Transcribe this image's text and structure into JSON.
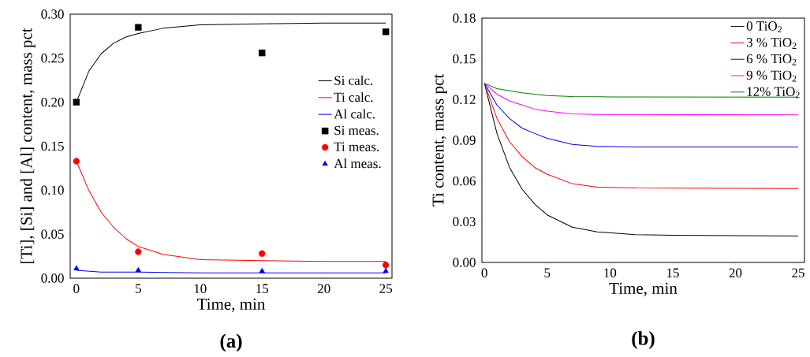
{
  "chart_data": [
    {
      "type": "line",
      "xlabel": "Time, min",
      "ylabel": "[Ti], [Si] and [Al] content, mass pct",
      "annotations": [
        "(a)"
      ],
      "legend": "right",
      "xlim": [
        -0.5,
        25.5
      ],
      "ylim": [
        0,
        0.3
      ],
      "xticks": [
        0,
        5,
        10,
        15,
        20,
        25
      ],
      "yticks": [
        {
          "value": 0,
          "label": "0.00"
        },
        {
          "value": 0.05,
          "label": "0.05"
        },
        {
          "value": 0.1,
          "label": "0.10"
        },
        {
          "value": 0.15,
          "label": "0.15"
        },
        {
          "value": 0.2,
          "label": "0.20"
        },
        {
          "value": 0.25,
          "label": "0.25"
        },
        {
          "value": 0.3,
          "label": "0.30"
        }
      ],
      "series": [
        {
          "name": "Si calc.",
          "type": "line",
          "color": "#000000",
          "x": [
            0,
            1,
            2,
            3,
            4,
            5,
            7,
            10,
            15,
            20,
            25
          ],
          "values": [
            0.2,
            0.235,
            0.255,
            0.267,
            0.274,
            0.278,
            0.284,
            0.288,
            0.289,
            0.29,
            0.29
          ]
        },
        {
          "name": "Ti calc.",
          "type": "line",
          "color": "#ff0000",
          "x": [
            0,
            1,
            2,
            3,
            4,
            5,
            7,
            10,
            15,
            20,
            25
          ],
          "values": [
            0.133,
            0.1,
            0.075,
            0.058,
            0.045,
            0.036,
            0.027,
            0.021,
            0.02,
            0.019,
            0.019
          ]
        },
        {
          "name": "Al calc.",
          "type": "line",
          "color": "#0000ff",
          "x": [
            0,
            2,
            5,
            10,
            25
          ],
          "values": [
            0.009,
            0.007,
            0.007,
            0.006,
            0.006
          ]
        },
        {
          "name": "Si meas.",
          "type": "scatter",
          "marker": "square",
          "color": "#000000",
          "x": [
            0,
            5,
            15,
            25
          ],
          "values": [
            0.2,
            0.285,
            0.256,
            0.28
          ]
        },
        {
          "name": "Ti meas.",
          "type": "scatter",
          "marker": "circle",
          "color": "#ff0000",
          "x": [
            0,
            5,
            15,
            25
          ],
          "values": [
            0.133,
            0.03,
            0.028,
            0.015
          ]
        },
        {
          "name": "Al meas.",
          "type": "scatter",
          "marker": "triangle",
          "color": "#0000ff",
          "x": [
            0,
            5,
            15,
            25
          ],
          "values": [
            0.011,
            0.009,
            0.008,
            0.008
          ]
        }
      ]
    },
    {
      "type": "line",
      "xlabel": "Time, min",
      "ylabel": "Ti content, mass pct",
      "annotations": [
        "(b)"
      ],
      "legend": "top right",
      "xlim": [
        -0.2,
        25.5
      ],
      "ylim": [
        0,
        0.18
      ],
      "xticks": [
        0,
        5,
        10,
        15,
        20,
        25
      ],
      "yticks": [
        {
          "value": 0,
          "label": "0.00"
        },
        {
          "value": 0.03,
          "label": "0.03"
        },
        {
          "value": 0.06,
          "label": "0.06"
        },
        {
          "value": 0.09,
          "label": "0.09"
        },
        {
          "value": 0.12,
          "label": "0.12"
        },
        {
          "value": 0.15,
          "label": "0.15"
        },
        {
          "value": 0.18,
          "label": "0.18"
        }
      ],
      "series": [
        {
          "name": "0 TiO$_{2}$",
          "color": "#000000",
          "x": [
            0,
            1,
            2,
            3,
            4,
            5,
            7,
            9,
            12,
            15,
            25
          ],
          "values": [
            0.132,
            0.095,
            0.07,
            0.054,
            0.043,
            0.035,
            0.026,
            0.0225,
            0.0205,
            0.02,
            0.0195
          ]
        },
        {
          "name": "3 % TiO$_{2}$",
          "color": "#ff0000",
          "x": [
            0,
            1,
            2,
            3,
            4,
            5,
            7,
            9,
            12,
            25
          ],
          "values": [
            0.132,
            0.106,
            0.089,
            0.078,
            0.07,
            0.065,
            0.058,
            0.0555,
            0.0548,
            0.0545
          ]
        },
        {
          "name": "6 % TiO$_{2}$",
          "color": "#0000ff",
          "x": [
            0,
            1,
            2,
            3,
            4,
            5,
            7,
            9,
            12,
            25
          ],
          "values": [
            0.132,
            0.116,
            0.106,
            0.099,
            0.095,
            0.0915,
            0.087,
            0.0855,
            0.085,
            0.085
          ]
        },
        {
          "name": "9 % TiO$_{2}$",
          "color": "#ff00ff",
          "x": [
            0,
            1,
            2,
            3,
            4,
            5,
            7,
            9,
            25
          ],
          "values": [
            0.132,
            0.124,
            0.119,
            0.116,
            0.113,
            0.1115,
            0.1095,
            0.109,
            0.1087
          ]
        },
        {
          "name": "12% TiO$_{2}$",
          "color": "#008000",
          "x": [
            0,
            1,
            2,
            3,
            5,
            7,
            10,
            25
          ],
          "values": [
            0.132,
            0.128,
            0.1265,
            0.125,
            0.123,
            0.1222,
            0.122,
            0.1218
          ]
        }
      ]
    }
  ]
}
